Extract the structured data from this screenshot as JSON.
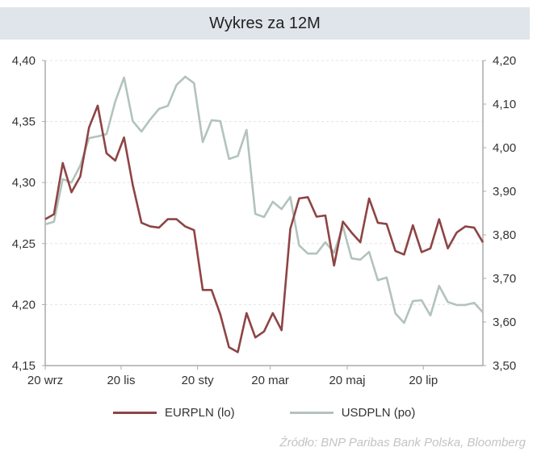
{
  "title": "Wykres za 12M",
  "source": "Źródło:  BNP Paribas Bank Polska, Bloomberg",
  "chart_data": {
    "type": "line",
    "title": "Wykres za 12M",
    "x_ticks": [
      {
        "label": "20 wrz",
        "index": 0
      },
      {
        "label": "20 lis",
        "index": 8.67
      },
      {
        "label": "20 sty",
        "index": 17.4
      },
      {
        "label": "20 mar",
        "index": 25.7
      },
      {
        "label": "20 maj",
        "index": 34.5
      },
      {
        "label": "20 lip",
        "index": 43.2
      }
    ],
    "y_left": {
      "ylim": [
        4.15,
        4.4
      ],
      "ticks": [
        "4,15",
        "4,20",
        "4,25",
        "4,30",
        "4,35",
        "4,40"
      ]
    },
    "y_right": {
      "ylim": [
        3.5,
        4.2
      ],
      "ticks": [
        "3,50",
        "3,60",
        "3,70",
        "3,80",
        "3,90",
        "4,00",
        "4,10",
        "4,20"
      ]
    },
    "grid": "horizontal dotted",
    "legend_position": "bottom",
    "series": [
      {
        "name": "EURPLN (lo)",
        "axis": "left",
        "color": "#8e4444",
        "values": [
          4.27,
          4.274,
          4.316,
          4.292,
          4.305,
          4.345,
          4.363,
          4.324,
          4.318,
          4.337,
          4.298,
          4.267,
          4.264,
          4.263,
          4.27,
          4.27,
          4.264,
          4.261,
          4.212,
          4.212,
          4.192,
          4.165,
          4.161,
          4.193,
          4.173,
          4.178,
          4.193,
          4.179,
          4.262,
          4.287,
          4.288,
          4.272,
          4.273,
          4.232,
          4.268,
          4.259,
          4.251,
          4.287,
          4.267,
          4.266,
          4.244,
          4.241,
          4.265,
          4.243,
          4.246,
          4.27,
          4.246,
          4.259,
          4.264,
          4.263,
          4.251
        ]
      },
      {
        "name": "USDPLN (po)",
        "axis": "right",
        "color": "#b3c3bb",
        "values": [
          3.824,
          3.83,
          3.928,
          3.92,
          3.959,
          4.022,
          4.026,
          4.031,
          4.106,
          4.161,
          4.061,
          4.037,
          4.065,
          4.089,
          4.096,
          4.144,
          4.163,
          4.148,
          4.013,
          4.063,
          4.061,
          3.974,
          3.981,
          4.041,
          3.848,
          3.841,
          3.876,
          3.859,
          3.887,
          3.776,
          3.757,
          3.757,
          3.783,
          3.759,
          3.82,
          3.746,
          3.743,
          3.761,
          3.696,
          3.702,
          3.62,
          3.598,
          3.648,
          3.65,
          3.615,
          3.683,
          3.646,
          3.639,
          3.639,
          3.644,
          3.622
        ]
      }
    ]
  }
}
